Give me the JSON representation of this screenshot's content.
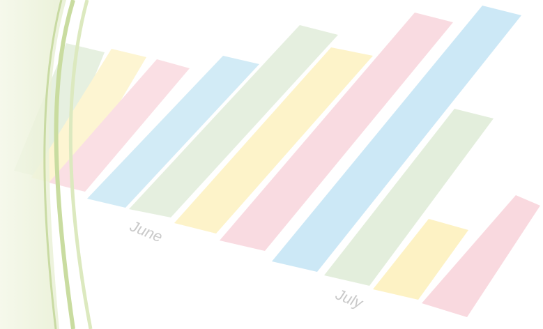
{
  "labels": {
    "first_month": "June",
    "second_month": "July"
  }
}
